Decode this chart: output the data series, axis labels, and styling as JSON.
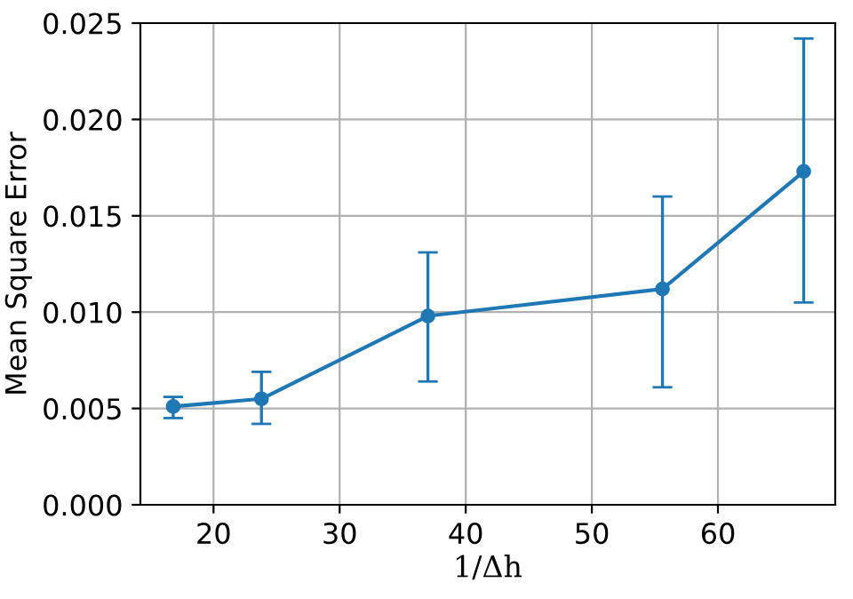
{
  "chart_data": {
    "type": "line",
    "xlabel": "1/Δh",
    "ylabel": "Mean Square Error",
    "x": [
      16.8,
      23.8,
      37.0,
      55.6,
      66.8
    ],
    "series": [
      {
        "color": "#1f77b4",
        "values": [
          0.0051,
          0.0055,
          0.0098,
          0.0112,
          0.0173
        ],
        "errors": [
          [
            0.0045,
            0.0056
          ],
          [
            0.0042,
            0.0069
          ],
          [
            0.0064,
            0.0131
          ],
          [
            0.0061,
            0.016
          ],
          [
            0.0105,
            0.0242
          ]
        ]
      }
    ],
    "xlim": [
      14.2,
      69.3
    ],
    "ylim": [
      0,
      0.025
    ],
    "xticks": [
      20,
      30,
      40,
      50,
      60
    ],
    "yticks": [
      {
        "value": 0,
        "label": "0.000"
      },
      {
        "value": 0.005,
        "label": "0.005"
      },
      {
        "value": 0.01,
        "label": "0.010"
      },
      {
        "value": 0.015,
        "label": "0.015"
      },
      {
        "value": 0.02,
        "label": "0.020"
      },
      {
        "value": 0.025,
        "label": "0.025"
      }
    ],
    "grid": true,
    "marker": "circle",
    "line_style": "solid"
  }
}
